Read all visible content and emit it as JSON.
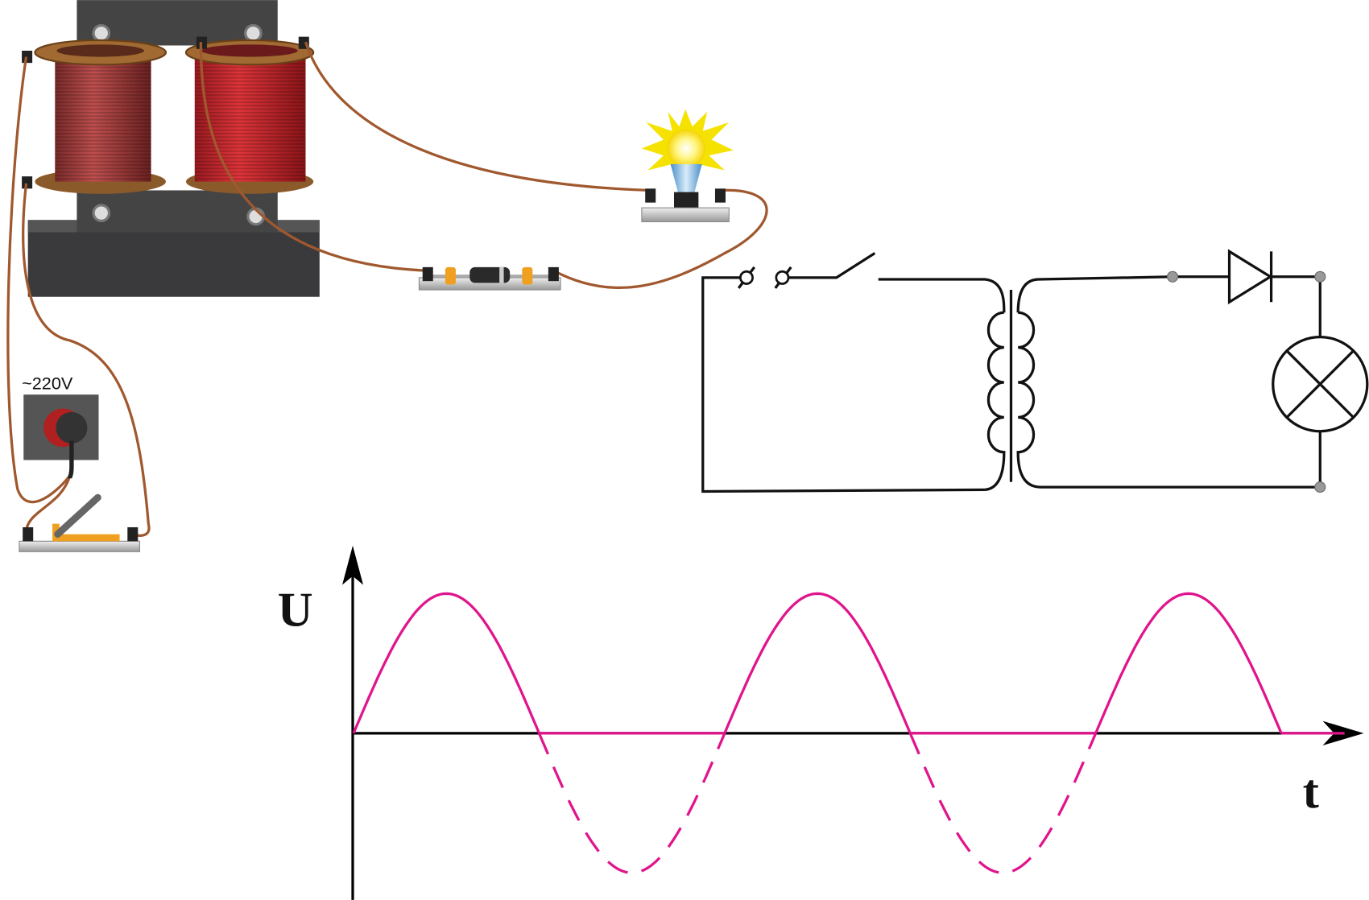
{
  "labels": {
    "source": "~220V",
    "voltage_axis": "U",
    "time_axis": "t"
  }
}
